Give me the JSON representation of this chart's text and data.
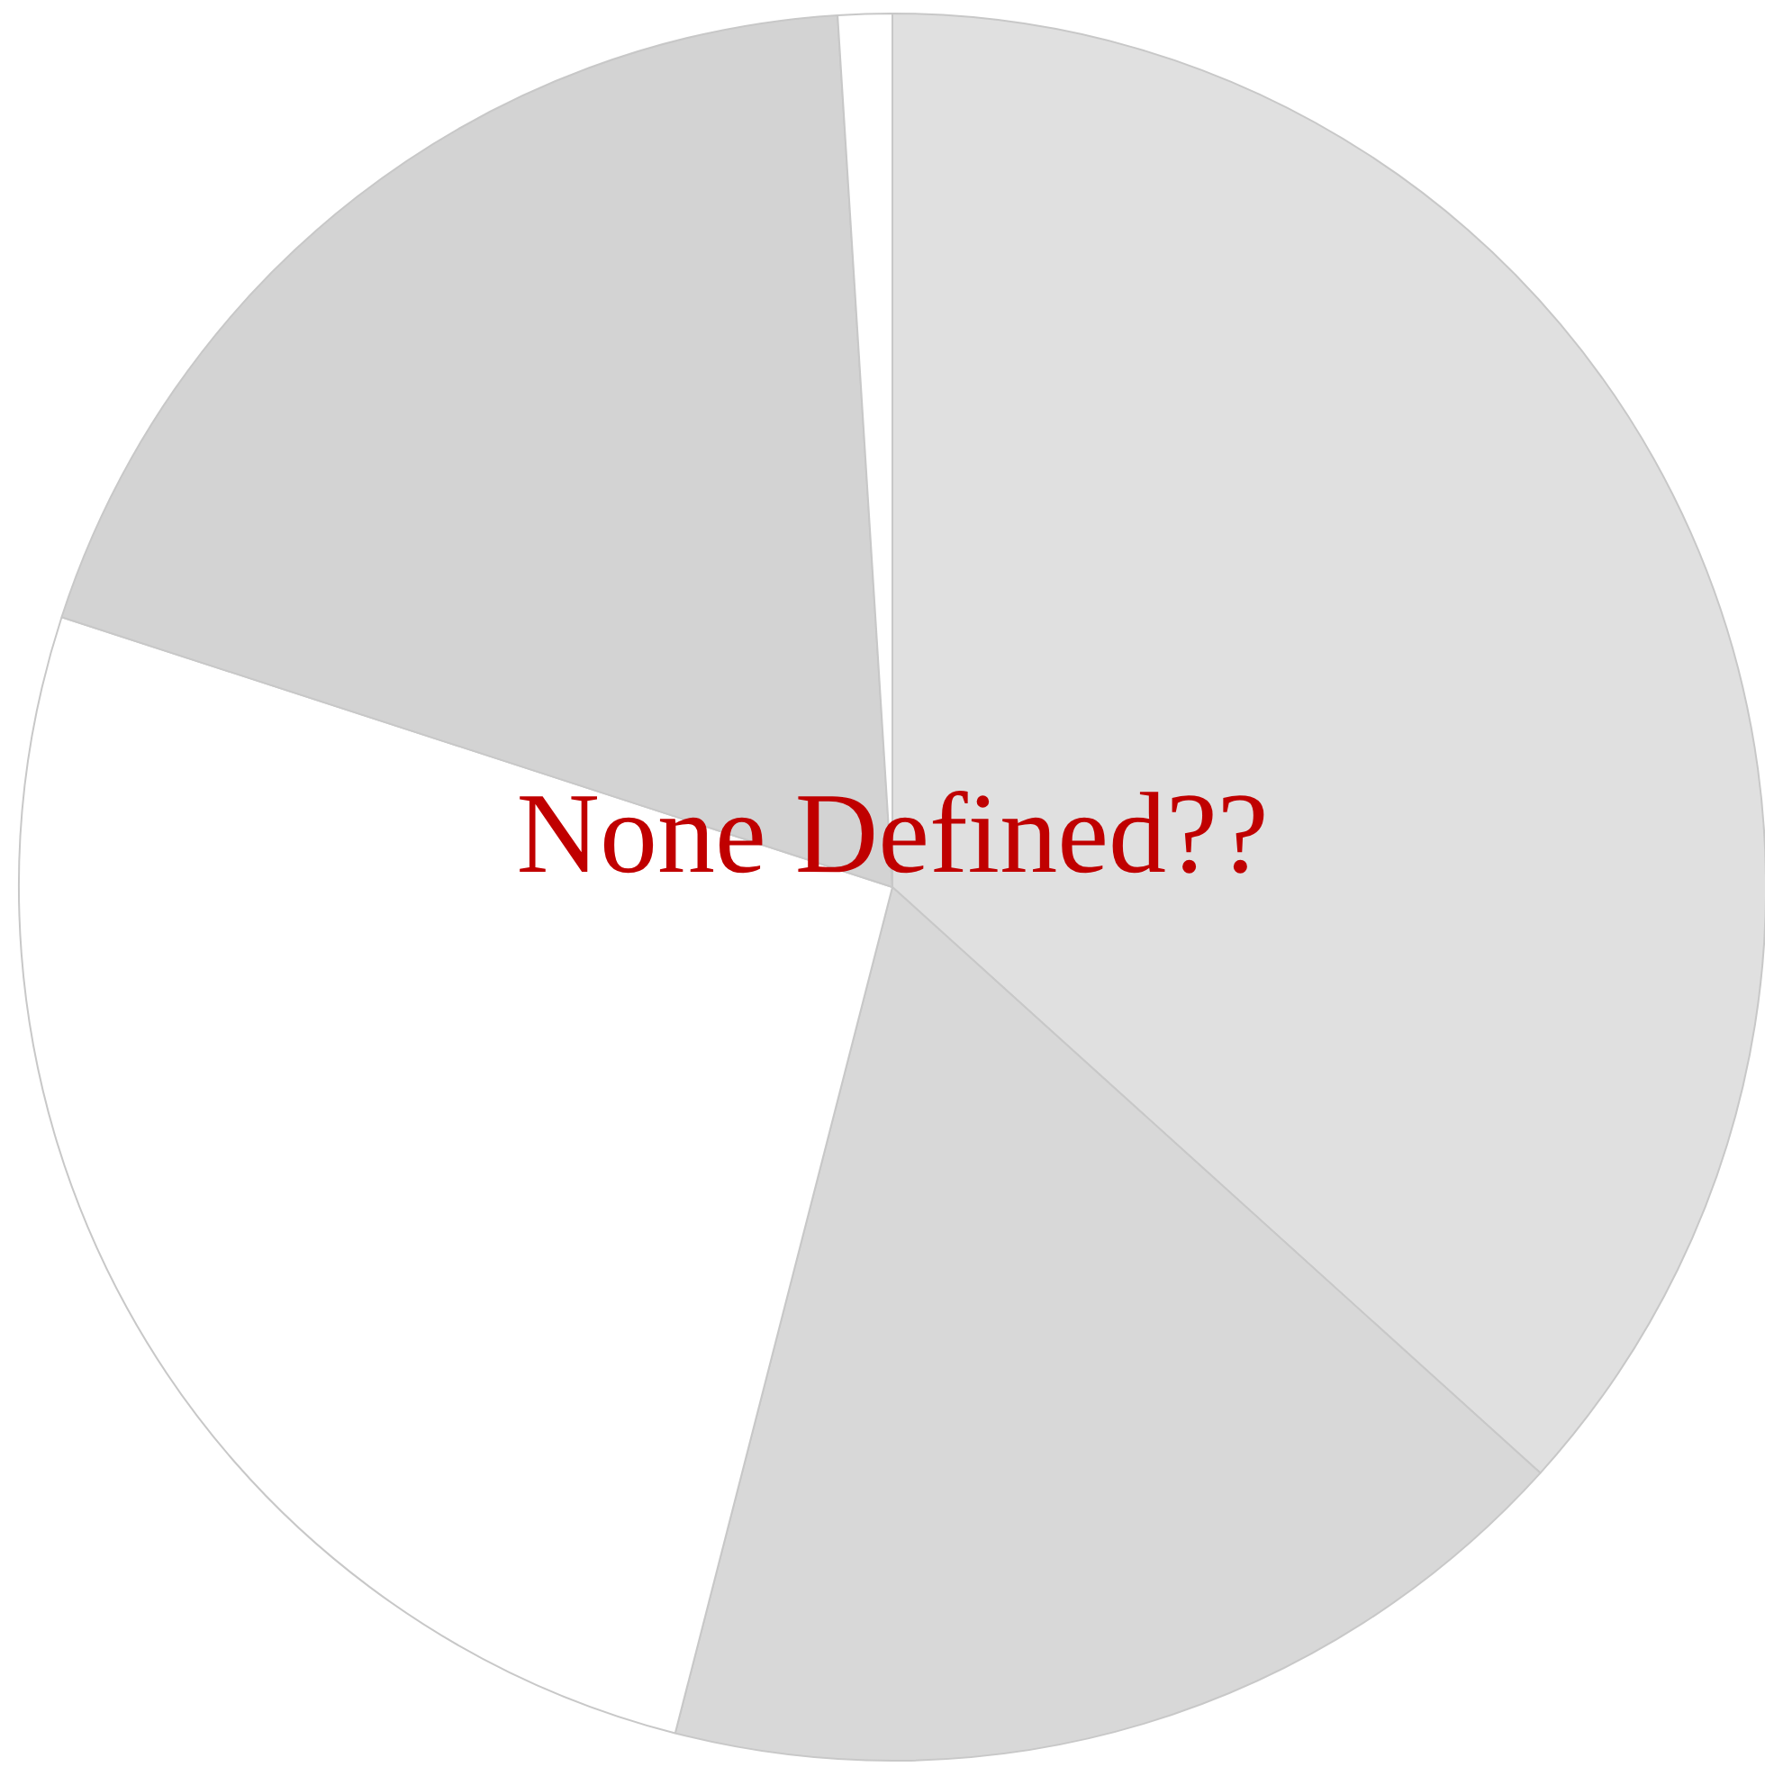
{
  "chart_data": {
    "type": "pie",
    "categories": [
      null,
      null,
      null,
      null,
      null
    ],
    "values": [
      36.7,
      17.3,
      26.0,
      19.0,
      1.0
    ],
    "colors": [
      "#e0e0e0",
      "#d8d8d8",
      "#ffffff",
      "#d3d3d3",
      "#ffffff"
    ],
    "annotations": [
      "None Defined??"
    ]
  }
}
